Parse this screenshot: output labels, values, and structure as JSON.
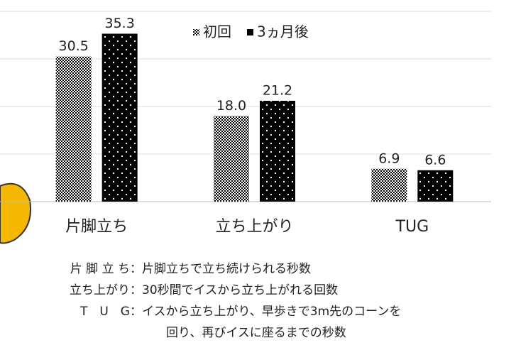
{
  "chart_data": {
    "type": "bar",
    "categories": [
      "片脚立ち",
      "立ち上がり",
      "TUG"
    ],
    "series": [
      {
        "name": "初回",
        "color": "#000000",
        "pattern": "checker",
        "values": [
          30.5,
          18.0,
          6.9
        ],
        "value_labels": [
          "30.5",
          "18.0",
          "6.9"
        ]
      },
      {
        "name": "3ヵ月後",
        "color": "#000000",
        "pattern": "dots",
        "values": [
          35.3,
          21.2,
          6.6
        ],
        "value_labels": [
          "35.3",
          "21.2",
          "6.6"
        ]
      }
    ],
    "ylim": [
      0,
      40
    ],
    "yticks": [
      0,
      10,
      20,
      30,
      40
    ],
    "grid": true,
    "legend": "top"
  },
  "notes": [
    {
      "term": "片 脚 立 ち：",
      "text": [
        "片脚立ちで立ち続けられる秒数"
      ]
    },
    {
      "term": "立ち上がり：",
      "text": [
        "30秒間でイスから立ち上がれる回数"
      ]
    },
    {
      "term": "T　U　G：",
      "text": [
        "イスから立ち上がり、早歩きで3m先のコーンを",
        "回り、再びイスに座るまでの秒数"
      ]
    }
  ]
}
